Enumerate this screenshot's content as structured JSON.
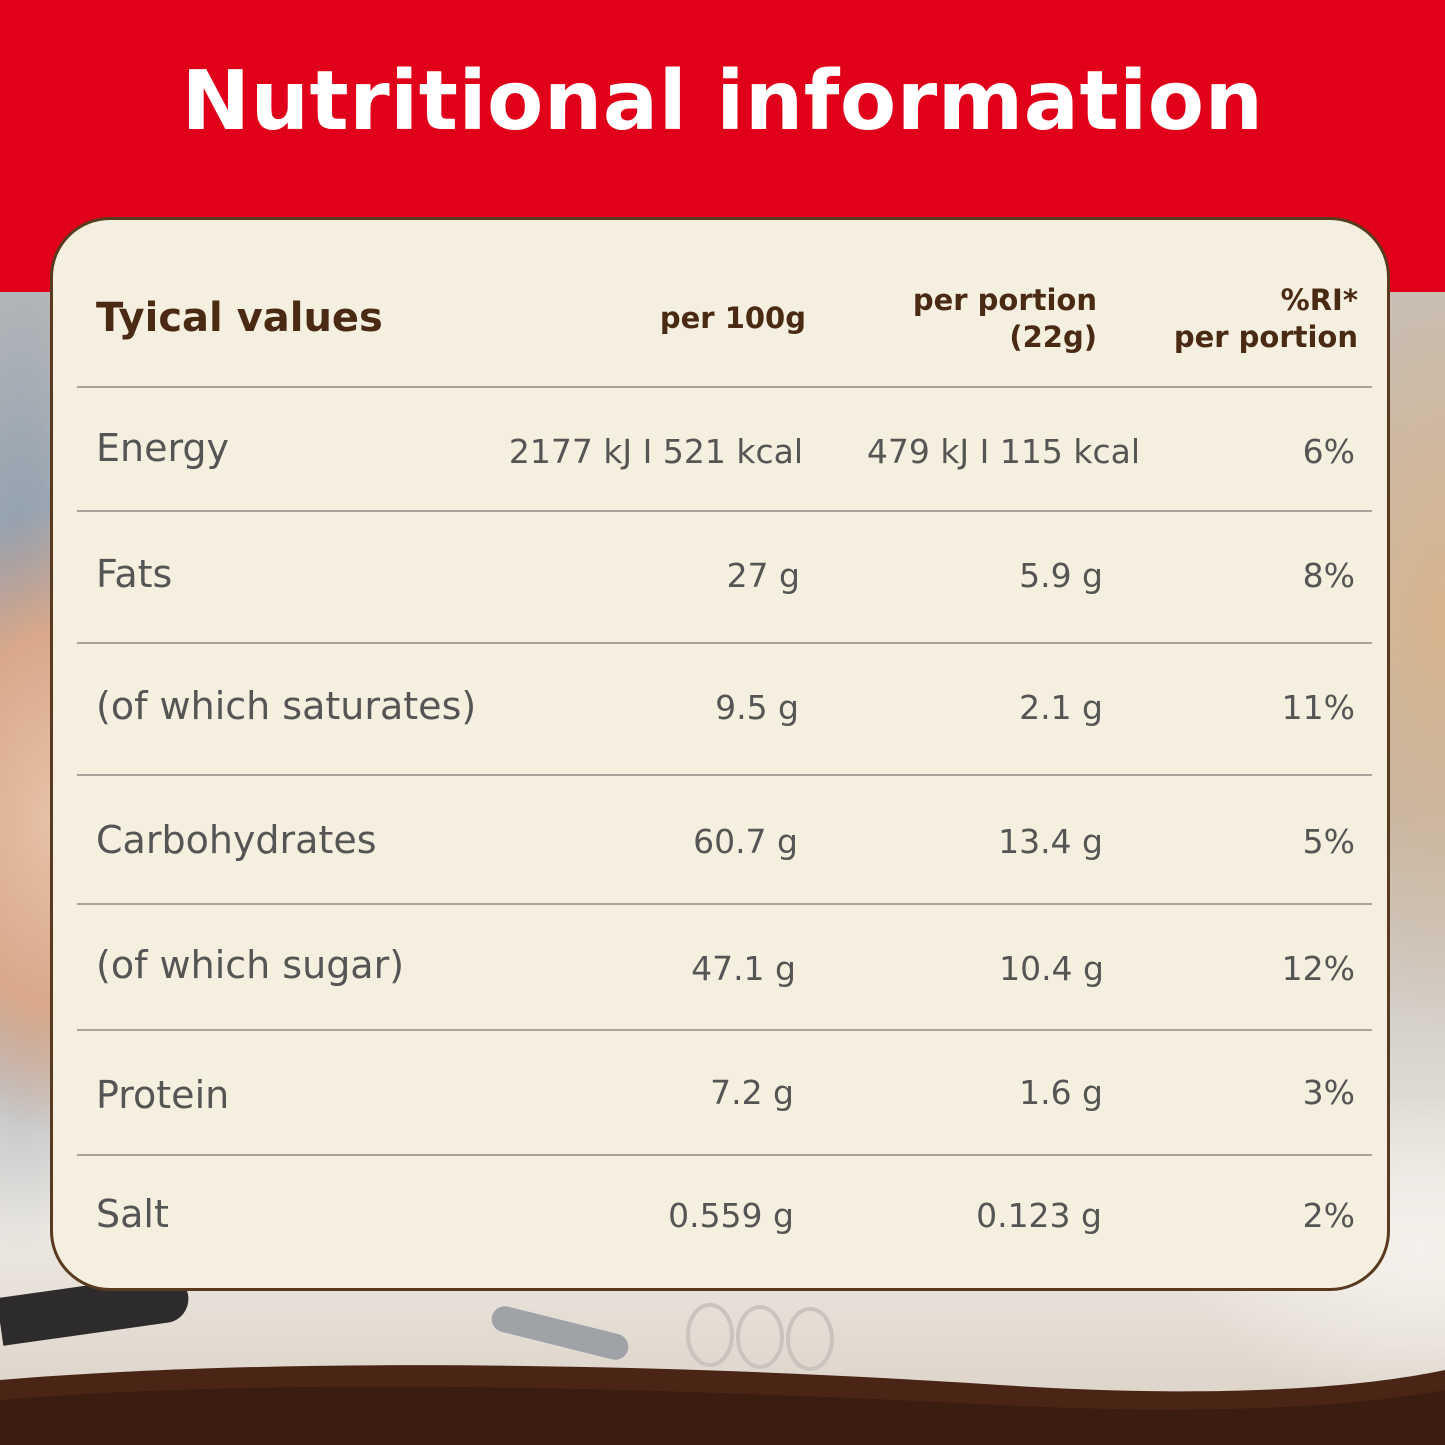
{
  "title": "Nutritional information",
  "table": {
    "header": {
      "label": "Tyical values",
      "per100": "per 100g",
      "portion_line1": "per portion",
      "portion_line2": "(22g)",
      "ri_line1": "%RI*",
      "ri_line2": "per portion"
    },
    "rows": [
      {
        "name": "Energy",
        "per100": "2177 kJ I 521 kcal",
        "portion": "479 kJ I 115 kcal",
        "ri": "6%"
      },
      {
        "name": "Fats",
        "per100": "27 g",
        "portion": "5.9 g",
        "ri": "8%"
      },
      {
        "name": "(of which saturates)",
        "per100": "9.5 g",
        "portion": "2.1 g",
        "ri": "11%"
      },
      {
        "name": "Carbohydrates",
        "per100": "60.7 g",
        "portion": "13.4 g",
        "ri": "5%"
      },
      {
        "name": "(of which sugar)",
        "per100": "47.1 g",
        "portion": "10.4 g",
        "ri": "12%"
      },
      {
        "name": "Protein",
        "per100": "7.2 g",
        "portion": "1.6 g",
        "ri": "3%"
      },
      {
        "name": "Salt",
        "per100": "0.559 g",
        "portion": "0.123 g",
        "ri": "2%"
      }
    ]
  },
  "colors": {
    "banner": "#e1001a",
    "panel": "#f5efe0",
    "header_text": "#4a2a12",
    "body_text": "#555555"
  }
}
